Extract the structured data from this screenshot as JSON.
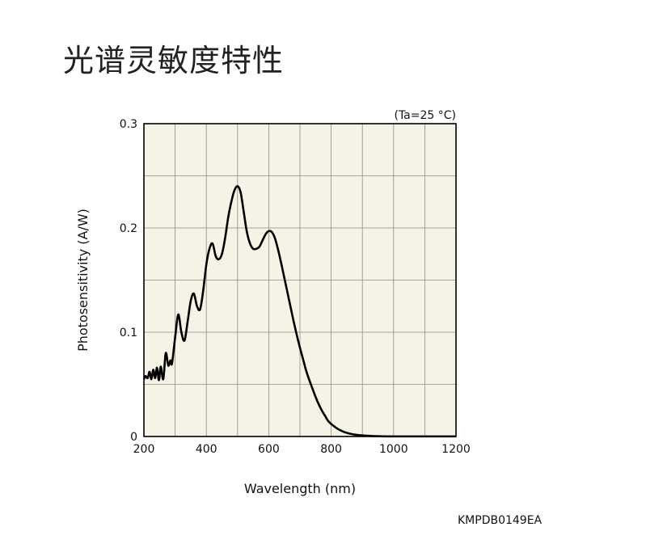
{
  "title": "光谱灵敏度特性",
  "doc_code": "KMPDB0149EA",
  "chart_data": {
    "type": "line",
    "condition": "(Ta=25 °C)",
    "xlabel": "Wavelength (nm)",
    "ylabel": "Photosensitivity (A/W)",
    "xlim": [
      200,
      1200
    ],
    "ylim": [
      0,
      0.3
    ],
    "x_ticks": [
      "200",
      "400",
      "600",
      "800",
      "1000",
      "1200"
    ],
    "y_ticks": [
      "0",
      "0.1",
      "0.2",
      "0.3"
    ],
    "grid": true,
    "background_color": "#f4f3e6",
    "line_color": "#000000",
    "series": [
      {
        "x": [
          200,
          205,
          212,
          218,
          224,
          230,
          236,
          242,
          248,
          254,
          262,
          270,
          278,
          285,
          290,
          300,
          310,
          320,
          330,
          340,
          350,
          360,
          370,
          380,
          390,
          400,
          410,
          420,
          430,
          440,
          450,
          460,
          470,
          480,
          490,
          500,
          510,
          520,
          530,
          540,
          550,
          560,
          570,
          580,
          590,
          600,
          610,
          620,
          630,
          640,
          650,
          660,
          670,
          680,
          690,
          700,
          710,
          720,
          730,
          740,
          750,
          760,
          770,
          780,
          790,
          800,
          820,
          840,
          860,
          880,
          900,
          920,
          940,
          960,
          980,
          1000,
          1020,
          1040,
          1060,
          1080,
          1100,
          1120,
          1140,
          1160,
          1180,
          1200
        ],
        "y": [
          0.055,
          0.058,
          0.056,
          0.062,
          0.055,
          0.064,
          0.056,
          0.066,
          0.054,
          0.067,
          0.055,
          0.08,
          0.068,
          0.073,
          0.07,
          0.095,
          0.117,
          0.1,
          0.092,
          0.11,
          0.13,
          0.137,
          0.125,
          0.122,
          0.14,
          0.165,
          0.18,
          0.185,
          0.173,
          0.17,
          0.175,
          0.19,
          0.21,
          0.225,
          0.236,
          0.24,
          0.234,
          0.215,
          0.196,
          0.185,
          0.18,
          0.18,
          0.182,
          0.188,
          0.194,
          0.197,
          0.196,
          0.19,
          0.179,
          0.166,
          0.152,
          0.138,
          0.124,
          0.11,
          0.097,
          0.085,
          0.074,
          0.063,
          0.054,
          0.046,
          0.038,
          0.031,
          0.025,
          0.02,
          0.015,
          0.012,
          0.0075,
          0.0045,
          0.0027,
          0.0016,
          0.001,
          0.0006,
          0.0003,
          0.0002,
          0.0001,
          0.0001,
          0.0001,
          0.0001,
          0.0001,
          0.0001,
          0.0001,
          0.0001,
          0.0001,
          0.0001,
          0.0001,
          0.0001
        ]
      }
    ]
  }
}
